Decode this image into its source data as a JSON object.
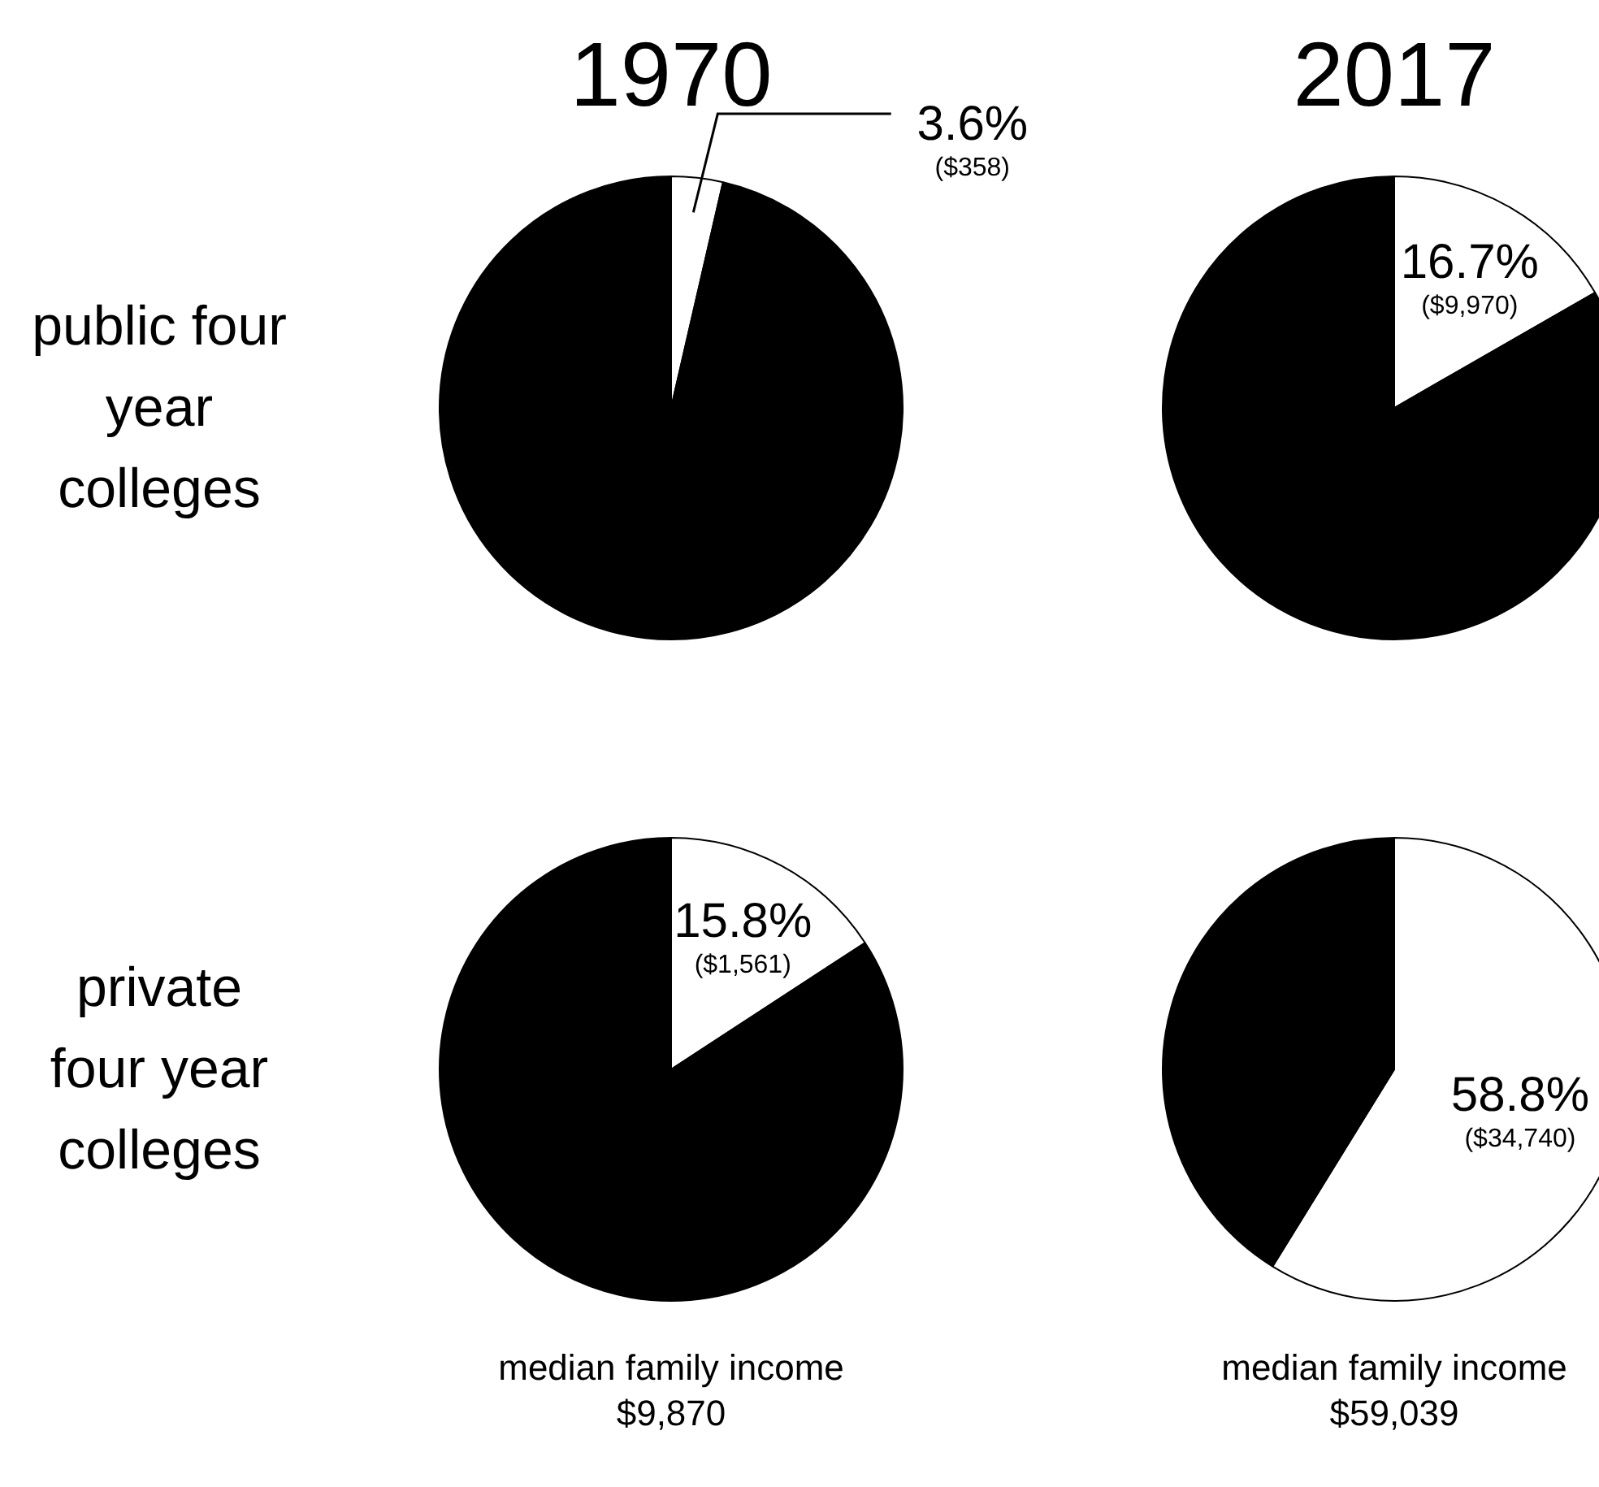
{
  "chart_data": [
    {
      "type": "pie",
      "title": "1970",
      "ylabel": "public four year colleges",
      "categories": [
        null,
        null
      ],
      "values": [
        3.6,
        96.4
      ],
      "colors": [
        "#ffffff",
        "#000000"
      ],
      "value_labels": [
        "3.6%",
        null
      ],
      "annotations": [
        "($358)"
      ],
      "legend": false
    },
    {
      "type": "pie",
      "title": "2017",
      "categories": [
        null,
        null
      ],
      "values": [
        16.7,
        83.3
      ],
      "colors": [
        "#ffffff",
        "#000000"
      ],
      "value_labels": [
        "16.7%",
        null
      ],
      "annotations": [
        "($9,970)"
      ],
      "legend": false
    },
    {
      "type": "pie",
      "ylabel": "private four year colleges",
      "xlabel": "median family income",
      "categories": [
        null,
        null
      ],
      "values": [
        15.8,
        84.2
      ],
      "colors": [
        "#ffffff",
        "#000000"
      ],
      "value_labels": [
        "15.8%",
        null
      ],
      "annotations": [
        "($1,561)",
        "$9,870"
      ],
      "legend": false
    },
    {
      "type": "pie",
      "xlabel": "median family income",
      "categories": [
        null,
        null
      ],
      "values": [
        58.8,
        41.2
      ],
      "colors": [
        "#ffffff",
        "#000000"
      ],
      "value_labels": [
        "58.8%",
        null
      ],
      "annotations": [
        "($34,740)",
        "$59,039"
      ],
      "legend": false
    }
  ]
}
